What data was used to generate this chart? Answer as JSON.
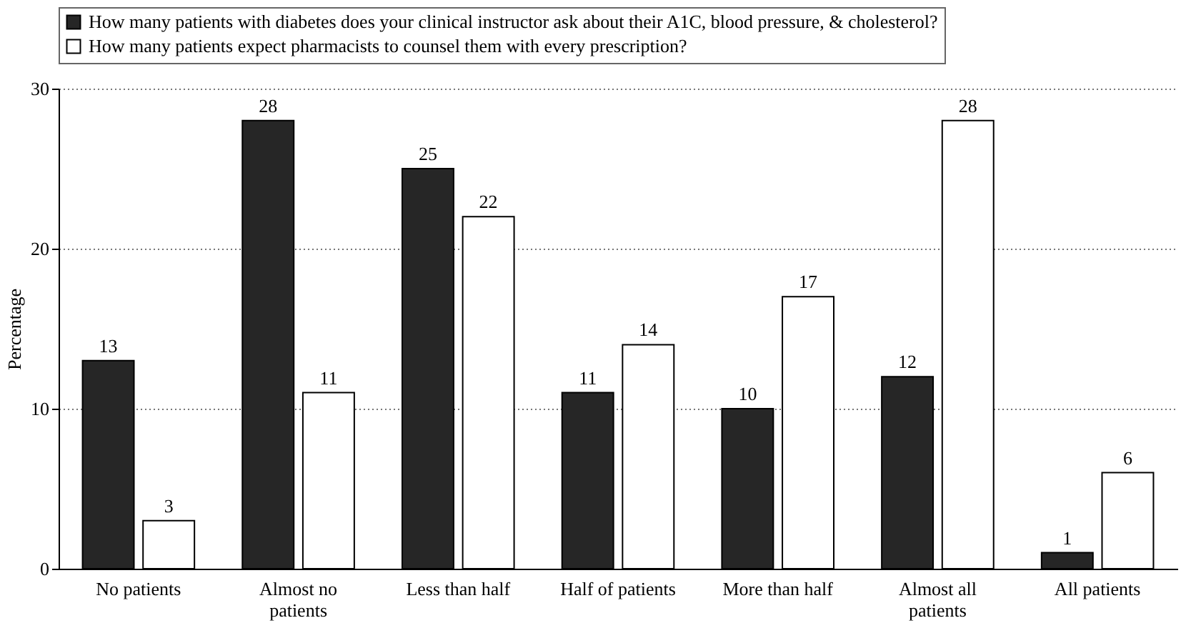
{
  "chart_data": {
    "type": "bar",
    "ylabel": "Percentage",
    "categories": [
      "No patients",
      "Almost no patients",
      "Less than half",
      "Half of patients",
      "More than half",
      "Almost all patients",
      "All patients"
    ],
    "series": [
      {
        "name": "How many patients with diabetes does your clinical instructor ask about their A1C, blood pressure, & cholesterol?",
        "color": "#262626",
        "values": [
          13,
          28,
          25,
          11,
          10,
          12,
          1
        ]
      },
      {
        "name": "How many patients expect pharmacists to counsel them with every prescription?",
        "color": "#ffffff",
        "values": [
          3,
          11,
          22,
          14,
          17,
          28,
          6
        ]
      }
    ],
    "ylim": [
      0,
      30
    ],
    "yticks": [
      0,
      10,
      20,
      30
    ],
    "grid": "y",
    "legend": "top",
    "data_labels": true
  }
}
